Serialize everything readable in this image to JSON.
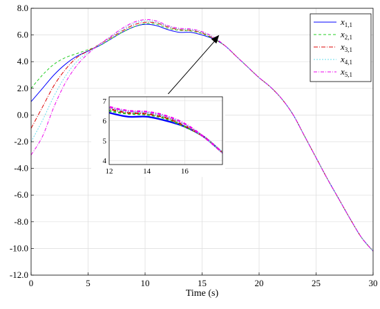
{
  "chart_data": {
    "type": "line",
    "xlabel": "Time (s)",
    "ylabel": "",
    "title": "",
    "xlim": [
      0,
      30
    ],
    "ylim": [
      -12,
      8
    ],
    "xticks": [
      "0",
      "5",
      "10",
      "15",
      "20",
      "25",
      "30"
    ],
    "yticks": [
      "-12.0",
      "-10.0",
      "-8.0",
      "-6.0",
      "-4.0",
      "-2.0",
      "0.0",
      "2.0",
      "4.0",
      "6.0",
      "8.0"
    ],
    "grid": true,
    "legend_position": "top-right",
    "series": [
      {
        "label_base": "x",
        "label_sub": "1,1",
        "color": "#0000ff",
        "dash": "",
        "points": [
          [
            0,
            1.0
          ],
          [
            1,
            2.0
          ],
          [
            2,
            3.0
          ],
          [
            3,
            3.8
          ],
          [
            4,
            4.4
          ],
          [
            5,
            4.8
          ],
          [
            6,
            5.2
          ],
          [
            7,
            5.7
          ],
          [
            8,
            6.2
          ],
          [
            9,
            6.6
          ],
          [
            10,
            6.8
          ],
          [
            11,
            6.7
          ],
          [
            12,
            6.4
          ],
          [
            13,
            6.2
          ],
          [
            14,
            6.2
          ],
          [
            15,
            6.0
          ],
          [
            16,
            5.7
          ],
          [
            17,
            5.2
          ],
          [
            18,
            4.4
          ],
          [
            19,
            3.6
          ],
          [
            20,
            2.8
          ],
          [
            21,
            2.1
          ],
          [
            22,
            1.2
          ],
          [
            23,
            0.0
          ],
          [
            24,
            -1.6
          ],
          [
            25,
            -3.2
          ],
          [
            26,
            -4.8
          ],
          [
            27,
            -6.3
          ],
          [
            28,
            -7.8
          ],
          [
            29,
            -9.2
          ],
          [
            30,
            -10.2
          ]
        ]
      },
      {
        "label_base": "x",
        "label_sub": "2,1",
        "color": "#22cc22",
        "dash": "4,3",
        "points": [
          [
            0,
            2.0
          ],
          [
            1,
            3.0
          ],
          [
            2,
            3.8
          ],
          [
            3,
            4.3
          ],
          [
            4,
            4.6
          ],
          [
            5,
            4.9
          ],
          [
            6,
            5.2
          ],
          [
            7,
            5.7
          ],
          [
            8,
            6.2
          ],
          [
            9,
            6.6
          ],
          [
            10,
            6.85
          ],
          [
            11,
            6.8
          ],
          [
            12,
            6.5
          ],
          [
            13,
            6.35
          ],
          [
            14,
            6.3
          ],
          [
            15,
            6.1
          ],
          [
            16,
            5.7
          ],
          [
            17,
            5.2
          ],
          [
            18,
            4.4
          ],
          [
            19,
            3.6
          ],
          [
            20,
            2.8
          ],
          [
            21,
            2.1
          ],
          [
            22,
            1.2
          ],
          [
            23,
            0.0
          ],
          [
            24,
            -1.6
          ],
          [
            25,
            -3.2
          ],
          [
            26,
            -4.8
          ],
          [
            27,
            -6.3
          ],
          [
            28,
            -7.8
          ],
          [
            29,
            -9.2
          ],
          [
            30,
            -10.2
          ]
        ]
      },
      {
        "label_base": "x",
        "label_sub": "3,1",
        "color": "#dd0000",
        "dash": "6,2,1,2",
        "points": [
          [
            0,
            -1.0
          ],
          [
            1,
            0.6
          ],
          [
            2,
            2.2
          ],
          [
            3,
            3.4
          ],
          [
            4,
            4.3
          ],
          [
            5,
            4.8
          ],
          [
            6,
            5.3
          ],
          [
            7,
            5.8
          ],
          [
            8,
            6.3
          ],
          [
            9,
            6.75
          ],
          [
            10,
            6.95
          ],
          [
            11,
            6.9
          ],
          [
            12,
            6.6
          ],
          [
            13,
            6.4
          ],
          [
            14,
            6.35
          ],
          [
            15,
            6.15
          ],
          [
            16,
            5.75
          ],
          [
            17,
            5.2
          ],
          [
            18,
            4.4
          ],
          [
            19,
            3.6
          ],
          [
            20,
            2.8
          ],
          [
            21,
            2.1
          ],
          [
            22,
            1.2
          ],
          [
            23,
            0.0
          ],
          [
            24,
            -1.6
          ],
          [
            25,
            -3.2
          ],
          [
            26,
            -4.8
          ],
          [
            27,
            -6.3
          ],
          [
            28,
            -7.8
          ],
          [
            29,
            -9.2
          ],
          [
            30,
            -10.2
          ]
        ]
      },
      {
        "label_base": "x",
        "label_sub": "4,1",
        "color": "#66ddee",
        "dash": "2,2",
        "points": [
          [
            0,
            -2.0
          ],
          [
            1,
            -0.4
          ],
          [
            2,
            1.4
          ],
          [
            3,
            2.9
          ],
          [
            4,
            4.0
          ],
          [
            5,
            4.7
          ],
          [
            6,
            5.3
          ],
          [
            7,
            5.85
          ],
          [
            8,
            6.4
          ],
          [
            9,
            6.85
          ],
          [
            10,
            7.05
          ],
          [
            11,
            6.95
          ],
          [
            12,
            6.65
          ],
          [
            13,
            6.45
          ],
          [
            14,
            6.4
          ],
          [
            15,
            6.2
          ],
          [
            16,
            5.8
          ],
          [
            17,
            5.2
          ],
          [
            18,
            4.4
          ],
          [
            19,
            3.6
          ],
          [
            20,
            2.8
          ],
          [
            21,
            2.1
          ],
          [
            22,
            1.2
          ],
          [
            23,
            0.0
          ],
          [
            24,
            -1.6
          ],
          [
            25,
            -3.2
          ],
          [
            26,
            -4.8
          ],
          [
            27,
            -6.3
          ],
          [
            28,
            -7.8
          ],
          [
            29,
            -9.2
          ],
          [
            30,
            -10.2
          ]
        ]
      },
      {
        "label_base": "x",
        "label_sub": "5,1",
        "color": "#ee00ee",
        "dash": "5,2,1,2",
        "points": [
          [
            0,
            -3.0
          ],
          [
            1,
            -1.6
          ],
          [
            2,
            0.6
          ],
          [
            3,
            2.4
          ],
          [
            4,
            3.7
          ],
          [
            5,
            4.6
          ],
          [
            6,
            5.3
          ],
          [
            7,
            5.9
          ],
          [
            8,
            6.5
          ],
          [
            9,
            6.95
          ],
          [
            10,
            7.15
          ],
          [
            11,
            7.05
          ],
          [
            12,
            6.7
          ],
          [
            13,
            6.5
          ],
          [
            14,
            6.45
          ],
          [
            15,
            6.25
          ],
          [
            16,
            5.85
          ],
          [
            17,
            5.2
          ],
          [
            18,
            4.4
          ],
          [
            19,
            3.6
          ],
          [
            20,
            2.8
          ],
          [
            21,
            2.1
          ],
          [
            22,
            1.2
          ],
          [
            23,
            0.0
          ],
          [
            24,
            -1.6
          ],
          [
            25,
            -3.2
          ],
          [
            26,
            -4.8
          ],
          [
            27,
            -6.3
          ],
          [
            28,
            -7.8
          ],
          [
            29,
            -9.2
          ],
          [
            30,
            -10.2
          ]
        ]
      }
    ],
    "inset": {
      "xlim": [
        12,
        18
      ],
      "ylim": [
        3.8,
        7.2
      ],
      "xticks": [
        "12",
        "14",
        "16"
      ],
      "yticks": [
        "4",
        "5",
        "6",
        "7"
      ],
      "zoom_target": [
        16.5,
        6.0
      ]
    }
  }
}
